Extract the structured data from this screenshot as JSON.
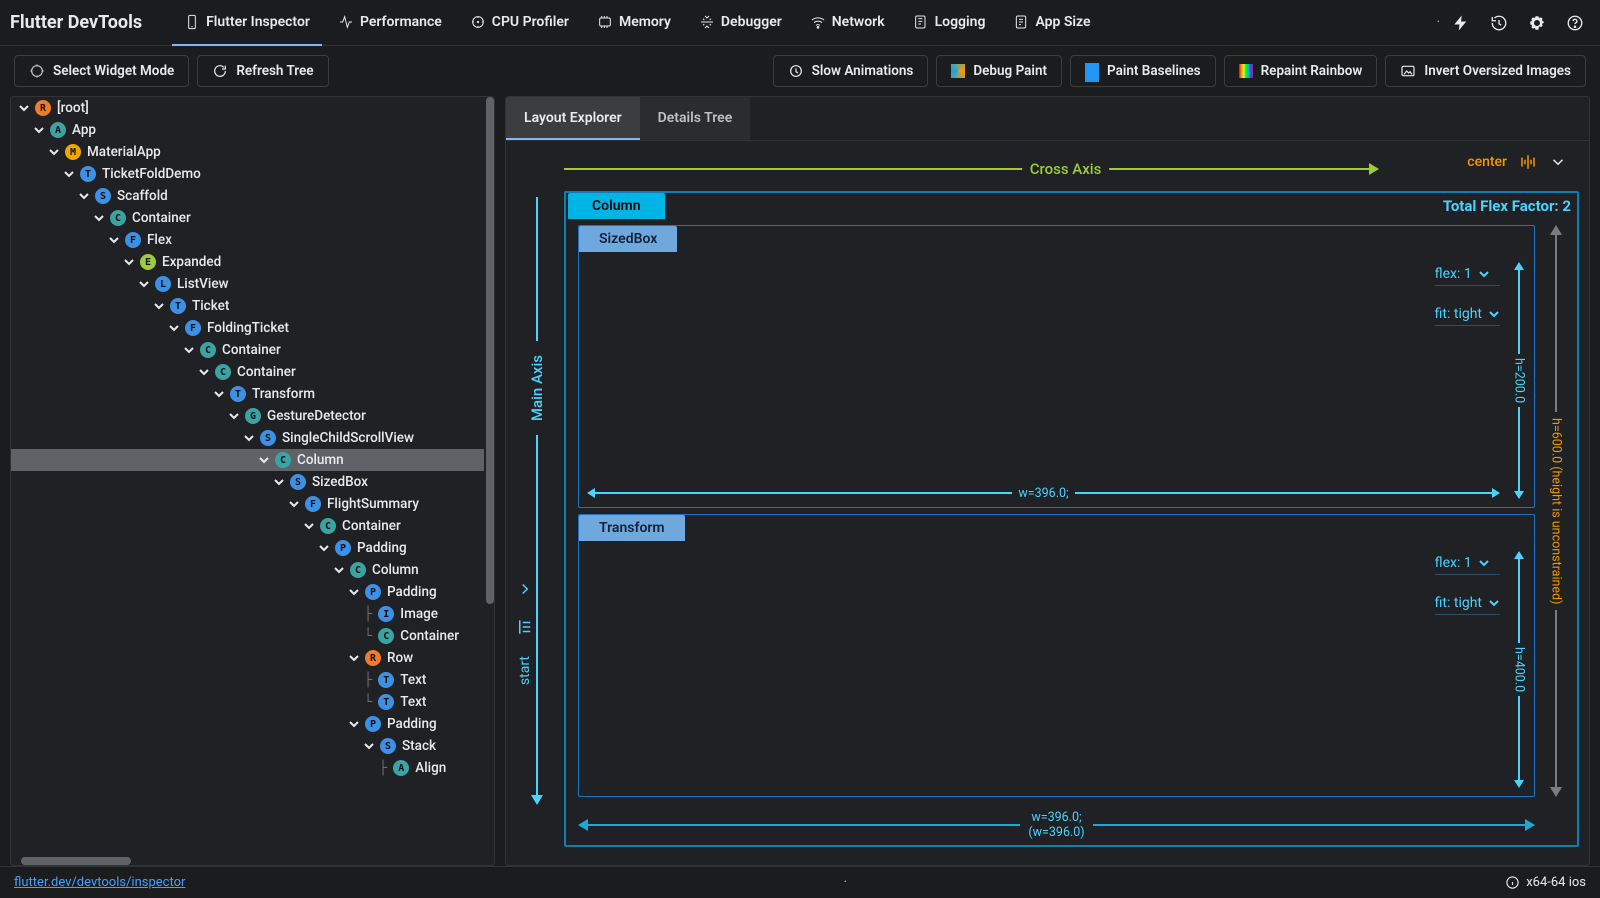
{
  "topbar": {
    "title": "Flutter DevTools",
    "navs": [
      {
        "icon": "phone",
        "label": "Flutter Inspector",
        "active": true
      },
      {
        "icon": "gauge",
        "label": "Performance"
      },
      {
        "icon": "cpu",
        "label": "CPU Profiler"
      },
      {
        "icon": "memory",
        "label": "Memory"
      },
      {
        "icon": "bug",
        "label": "Debugger"
      },
      {
        "icon": "wifi",
        "label": "Network"
      },
      {
        "icon": "log",
        "label": "Logging"
      },
      {
        "icon": "appsize",
        "label": "App Size"
      }
    ]
  },
  "toolbar": {
    "selectWidget": "Select Widget Mode",
    "refresh": "Refresh Tree",
    "slowAnim": "Slow Animations",
    "debugPaint": "Debug Paint",
    "baselines": "Paint Baselines",
    "rainbow": "Repaint Rainbow",
    "invert": "Invert Oversized Images"
  },
  "treeBadges": {
    "R": "#ef7c2b",
    "A": "#3ba3a3",
    "M": "#f2a600",
    "T": "#3c91e6",
    "S": "#3c91e6",
    "C": "#3ba3a3",
    "F": "#3c91e6",
    "E": "#9ccc3c",
    "L": "#3c91e6",
    "G": "#3ba3a3",
    "P": "#3c91e6",
    "I": "#3c91e6"
  },
  "tree": [
    {
      "d": 0,
      "b": "R",
      "t": "[root]"
    },
    {
      "d": 1,
      "b": "A",
      "t": "App"
    },
    {
      "d": 2,
      "b": "M",
      "t": "MaterialApp"
    },
    {
      "d": 3,
      "b": "T",
      "t": "TicketFoldDemo"
    },
    {
      "d": 4,
      "b": "S",
      "t": "Scaffold"
    },
    {
      "d": 5,
      "b": "C",
      "t": "Container"
    },
    {
      "d": 6,
      "b": "F",
      "t": "Flex"
    },
    {
      "d": 7,
      "b": "E",
      "t": "Expanded"
    },
    {
      "d": 8,
      "b": "L",
      "t": "ListView"
    },
    {
      "d": 9,
      "b": "T",
      "t": "Ticket",
      "pipe": true
    },
    {
      "d": 10,
      "b": "F",
      "t": "FoldingTicket"
    },
    {
      "d": 11,
      "b": "C",
      "t": "Container"
    },
    {
      "d": 12,
      "b": "C",
      "t": "Container"
    },
    {
      "d": 13,
      "b": "T",
      "t": "Transform"
    },
    {
      "d": 14,
      "b": "G",
      "t": "GestureDetector"
    },
    {
      "d": 15,
      "b": "S",
      "t": "SingleChildScrollView"
    },
    {
      "d": 16,
      "b": "C",
      "t": "Column",
      "sel": true
    },
    {
      "d": 17,
      "b": "S",
      "t": "SizedBox",
      "pipe": true
    },
    {
      "d": 18,
      "b": "F",
      "t": "FlightSummary"
    },
    {
      "d": 19,
      "b": "C",
      "t": "Container"
    },
    {
      "d": 20,
      "b": "P",
      "t": "Padding"
    },
    {
      "d": 21,
      "b": "C",
      "t": "Column"
    },
    {
      "d": 22,
      "b": "P",
      "t": "Padding",
      "pipe": true
    },
    {
      "d": 23,
      "b": "I",
      "t": "Image",
      "leaf": true,
      "pipe": true
    },
    {
      "d": 23,
      "b": "C",
      "t": "Container",
      "leaflast": true
    },
    {
      "d": 22,
      "b": "R",
      "t": "Row",
      "pipe": true
    },
    {
      "d": 23,
      "b": "T",
      "t": "Text",
      "leaf": true,
      "pipe": true
    },
    {
      "d": 23,
      "b": "T",
      "t": "Text",
      "leaflast": true
    },
    {
      "d": 22,
      "b": "P",
      "t": "Padding",
      "pipe": true
    },
    {
      "d": 23,
      "b": "S",
      "t": "Stack"
    },
    {
      "d": 24,
      "b": "A",
      "t": "Align",
      "pipe": true,
      "leaf": true
    }
  ],
  "rightPane": {
    "tabs": [
      {
        "label": "Layout Explorer",
        "active": true
      },
      {
        "label": "Details Tree"
      }
    ],
    "crossAxis": {
      "label": "Cross Axis",
      "align": "center"
    },
    "mainAxis": {
      "label": "Main Axis",
      "align": "start"
    },
    "column": {
      "label": "Column",
      "flexFactor": "Total Flex Factor: 2",
      "bigH_line1": "h=600.0",
      "bigH_line2": "(height is unconstrained)",
      "bigW_line1": "w=396.0;",
      "bigW_line2": "(w=396.0)",
      "children": [
        {
          "label": "SizedBox",
          "flex": "flex: 1",
          "fit": "fit: tight",
          "w": "w=396.0;",
          "h": "h=200.0"
        },
        {
          "label": "Transform",
          "flex": "flex: 1",
          "fit": "fit: tight",
          "w": "",
          "h": "h=400.0"
        }
      ]
    }
  },
  "status": {
    "link": "flutter.dev/devtools/inspector",
    "center": "·",
    "right": "x64-64 ios"
  }
}
